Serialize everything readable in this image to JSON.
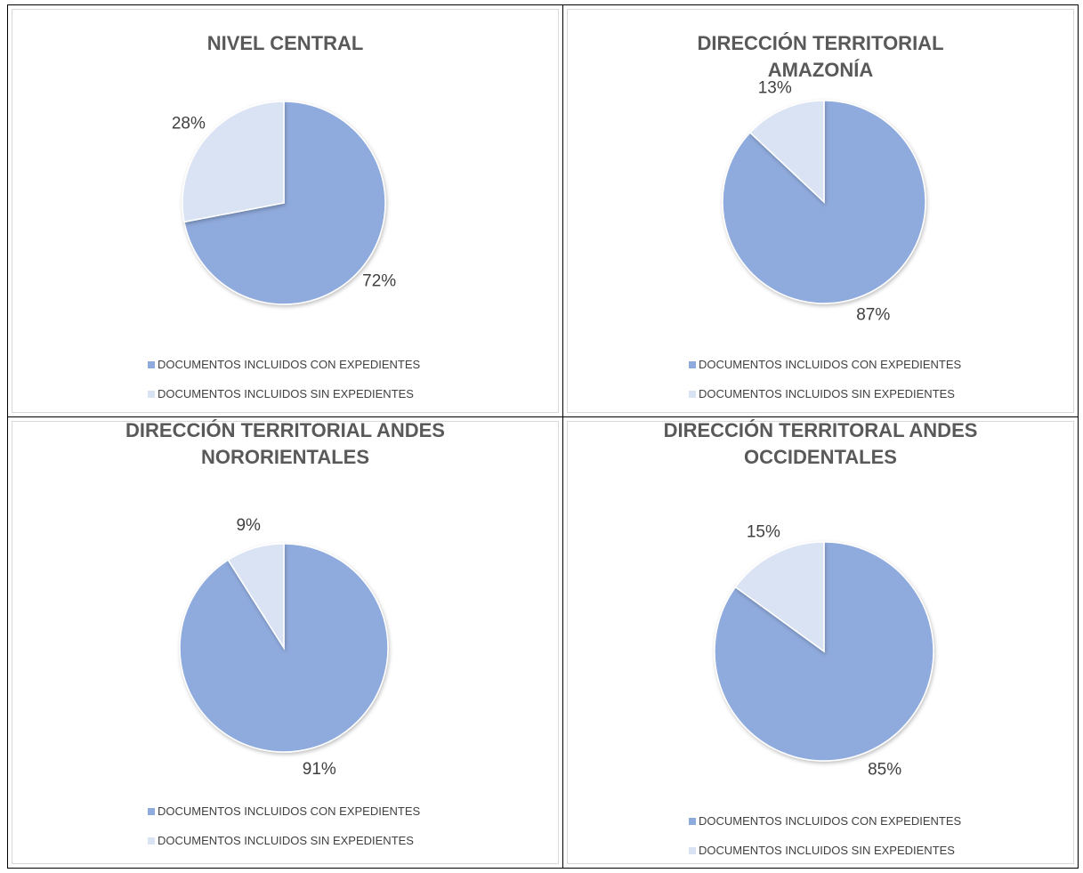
{
  "chart_data": [
    {
      "type": "pie",
      "title": "NIVEL CENTRAL",
      "categories": [
        "DOCUMENTOS INCLUIDOS CON EXPEDIENTES",
        "DOCUMENTOS INCLUIDOS SIN EXPEDIENTES"
      ],
      "values": [
        72,
        28
      ],
      "value_labels": [
        "72%",
        "28%"
      ],
      "colors": [
        "#8faadc",
        "#dae3f3"
      ],
      "legend": "bottom"
    },
    {
      "type": "pie",
      "title": "DIRECCIÓN TERRITORIAL AMAZONÍA",
      "categories": [
        "DOCUMENTOS INCLUIDOS CON EXPEDIENTES",
        "DOCUMENTOS INCLUIDOS SIN EXPEDIENTES"
      ],
      "values": [
        87,
        13
      ],
      "value_labels": [
        "87%",
        "13%"
      ],
      "colors": [
        "#8faadc",
        "#dae3f3"
      ],
      "legend": "bottom"
    },
    {
      "type": "pie",
      "title": "DIRECCIÓN TERRITORIAL ANDES NORORIENTALES",
      "categories": [
        "DOCUMENTOS INCLUIDOS CON EXPEDIENTES",
        "DOCUMENTOS INCLUIDOS SIN EXPEDIENTES"
      ],
      "values": [
        91,
        9
      ],
      "value_labels": [
        "91%",
        "9%"
      ],
      "colors": [
        "#8faadc",
        "#dae3f3"
      ],
      "legend": "bottom"
    },
    {
      "type": "pie",
      "title": "DIRECCIÓN TERRITORAL ANDES OCCIDENTALES",
      "categories": [
        "DOCUMENTOS INCLUIDOS CON EXPEDIENTES",
        "DOCUMENTOS INCLUIDOS SIN EXPEDIENTES"
      ],
      "values": [
        85,
        15
      ],
      "value_labels": [
        "85%",
        "15%"
      ],
      "colors": [
        "#8faadc",
        "#dae3f3"
      ],
      "legend": "bottom"
    }
  ]
}
